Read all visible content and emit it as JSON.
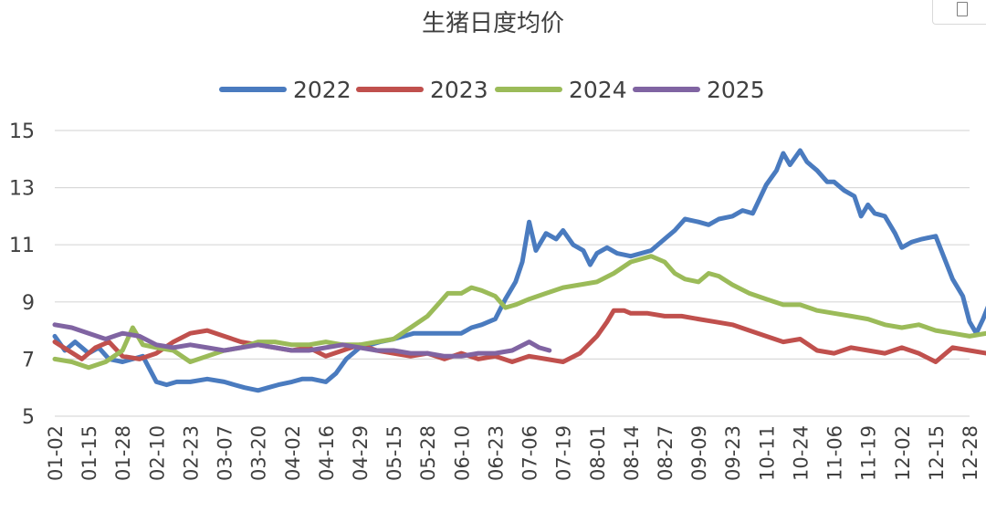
{
  "chart_data": {
    "type": "line",
    "title": "生猪日度均价",
    "xlabel": "",
    "ylabel": "",
    "ylim": [
      5,
      15
    ],
    "yticks": [
      5,
      7,
      9,
      11,
      13,
      15
    ],
    "grid": true,
    "legend_position": "top",
    "categories": [
      "01-02",
      "01-15",
      "01-28",
      "02-10",
      "02-23",
      "03-07",
      "03-20",
      "04-02",
      "04-16",
      "04-29",
      "05-15",
      "05-28",
      "06-10",
      "06-23",
      "07-06",
      "07-19",
      "08-01",
      "08-14",
      "08-27",
      "09-09",
      "09-23",
      "10-11",
      "10-24",
      "11-06",
      "11-19",
      "12-02",
      "12-15",
      "12-28"
    ],
    "series": [
      {
        "name": "2022",
        "color": "#4a7bbf",
        "points": [
          [
            0,
            7.8
          ],
          [
            0.3,
            7.3
          ],
          [
            0.6,
            7.6
          ],
          [
            1,
            7.2
          ],
          [
            1.3,
            7.4
          ],
          [
            1.6,
            7.0
          ],
          [
            2,
            6.9
          ],
          [
            2.3,
            7.0
          ],
          [
            2.6,
            7.1
          ],
          [
            3,
            6.2
          ],
          [
            3.3,
            6.1
          ],
          [
            3.6,
            6.2
          ],
          [
            4,
            6.2
          ],
          [
            4.5,
            6.3
          ],
          [
            5,
            6.2
          ],
          [
            5.3,
            6.1
          ],
          [
            5.6,
            6.0
          ],
          [
            6,
            5.9
          ],
          [
            6.3,
            6.0
          ],
          [
            6.6,
            6.1
          ],
          [
            7,
            6.2
          ],
          [
            7.3,
            6.3
          ],
          [
            7.6,
            6.3
          ],
          [
            8,
            6.2
          ],
          [
            8.3,
            6.5
          ],
          [
            8.6,
            7.0
          ],
          [
            9,
            7.4
          ],
          [
            9.3,
            7.5
          ],
          [
            9.6,
            7.6
          ],
          [
            10,
            7.7
          ],
          [
            10.3,
            7.8
          ],
          [
            10.6,
            7.9
          ],
          [
            11,
            7.9
          ],
          [
            11.5,
            7.9
          ],
          [
            12,
            7.9
          ],
          [
            12.3,
            8.1
          ],
          [
            12.6,
            8.2
          ],
          [
            13,
            8.4
          ],
          [
            13.3,
            9.1
          ],
          [
            13.6,
            9.7
          ],
          [
            13.8,
            10.4
          ],
          [
            14,
            11.8
          ],
          [
            14.2,
            10.8
          ],
          [
            14.5,
            11.4
          ],
          [
            14.8,
            11.2
          ],
          [
            15,
            11.5
          ],
          [
            15.3,
            11.0
          ],
          [
            15.6,
            10.8
          ],
          [
            15.8,
            10.3
          ],
          [
            16,
            10.7
          ],
          [
            16.3,
            10.9
          ],
          [
            16.6,
            10.7
          ],
          [
            17,
            10.6
          ],
          [
            17.3,
            10.7
          ],
          [
            17.6,
            10.8
          ],
          [
            18,
            11.2
          ],
          [
            18.3,
            11.5
          ],
          [
            18.6,
            11.9
          ],
          [
            19,
            11.8
          ],
          [
            19.3,
            11.7
          ],
          [
            19.6,
            11.9
          ],
          [
            20,
            12.0
          ],
          [
            20.3,
            12.2
          ],
          [
            20.6,
            12.1
          ],
          [
            21,
            13.1
          ],
          [
            21.3,
            13.6
          ],
          [
            21.5,
            14.2
          ],
          [
            21.7,
            13.8
          ],
          [
            22,
            14.3
          ],
          [
            22.2,
            13.9
          ],
          [
            22.5,
            13.6
          ],
          [
            22.8,
            13.2
          ],
          [
            23,
            13.2
          ],
          [
            23.3,
            12.9
          ],
          [
            23.6,
            12.7
          ],
          [
            23.8,
            12.0
          ],
          [
            24,
            12.4
          ],
          [
            24.2,
            12.1
          ],
          [
            24.5,
            12.0
          ],
          [
            24.8,
            11.4
          ],
          [
            25,
            10.9
          ],
          [
            25.3,
            11.1
          ],
          [
            25.6,
            11.2
          ],
          [
            26,
            11.3
          ],
          [
            26.3,
            10.4
          ],
          [
            26.5,
            9.8
          ],
          [
            26.8,
            9.2
          ],
          [
            27,
            8.3
          ],
          [
            27.2,
            7.9
          ],
          [
            27.4,
            8.4
          ],
          [
            27.6,
            9.0
          ],
          [
            27.8,
            8.8
          ],
          [
            28,
            8.3
          ]
        ]
      },
      {
        "name": "2023",
        "color": "#c0504d",
        "points": [
          [
            0,
            7.6
          ],
          [
            0.4,
            7.3
          ],
          [
            0.8,
            7.0
          ],
          [
            1.2,
            7.4
          ],
          [
            1.6,
            7.6
          ],
          [
            2,
            7.1
          ],
          [
            2.5,
            7.0
          ],
          [
            3,
            7.2
          ],
          [
            3.5,
            7.6
          ],
          [
            4,
            7.9
          ],
          [
            4.5,
            8.0
          ],
          [
            5,
            7.8
          ],
          [
            5.5,
            7.6
          ],
          [
            6,
            7.5
          ],
          [
            6.5,
            7.4
          ],
          [
            7,
            7.3
          ],
          [
            7.5,
            7.4
          ],
          [
            8,
            7.1
          ],
          [
            8.5,
            7.3
          ],
          [
            9,
            7.5
          ],
          [
            9.5,
            7.3
          ],
          [
            10,
            7.2
          ],
          [
            10.5,
            7.1
          ],
          [
            11,
            7.2
          ],
          [
            11.5,
            7.0
          ],
          [
            12,
            7.2
          ],
          [
            12.5,
            7.0
          ],
          [
            13,
            7.1
          ],
          [
            13.5,
            6.9
          ],
          [
            14,
            7.1
          ],
          [
            14.5,
            7.0
          ],
          [
            15,
            6.9
          ],
          [
            15.5,
            7.2
          ],
          [
            16,
            7.8
          ],
          [
            16.3,
            8.3
          ],
          [
            16.5,
            8.7
          ],
          [
            16.8,
            8.7
          ],
          [
            17,
            8.6
          ],
          [
            17.5,
            8.6
          ],
          [
            18,
            8.5
          ],
          [
            18.5,
            8.5
          ],
          [
            19,
            8.4
          ],
          [
            19.5,
            8.3
          ],
          [
            20,
            8.2
          ],
          [
            20.5,
            8.0
          ],
          [
            21,
            7.8
          ],
          [
            21.5,
            7.6
          ],
          [
            22,
            7.7
          ],
          [
            22.5,
            7.3
          ],
          [
            23,
            7.2
          ],
          [
            23.5,
            7.4
          ],
          [
            24,
            7.3
          ],
          [
            24.5,
            7.2
          ],
          [
            25,
            7.4
          ],
          [
            25.5,
            7.2
          ],
          [
            26,
            6.9
          ],
          [
            26.5,
            7.4
          ],
          [
            27,
            7.3
          ],
          [
            27.5,
            7.2
          ],
          [
            28,
            7.1
          ]
        ]
      },
      {
        "name": "2024",
        "color": "#9bbb59",
        "points": [
          [
            0,
            7.0
          ],
          [
            0.5,
            6.9
          ],
          [
            1,
            6.7
          ],
          [
            1.5,
            6.9
          ],
          [
            2,
            7.3
          ],
          [
            2.3,
            8.1
          ],
          [
            2.6,
            7.5
          ],
          [
            3,
            7.4
          ],
          [
            3.5,
            7.3
          ],
          [
            4,
            6.9
          ],
          [
            4.5,
            7.1
          ],
          [
            5,
            7.3
          ],
          [
            5.5,
            7.4
          ],
          [
            6,
            7.6
          ],
          [
            6.5,
            7.6
          ],
          [
            7,
            7.5
          ],
          [
            7.5,
            7.5
          ],
          [
            8,
            7.6
          ],
          [
            8.5,
            7.5
          ],
          [
            9,
            7.5
          ],
          [
            9.5,
            7.6
          ],
          [
            10,
            7.7
          ],
          [
            10.5,
            8.1
          ],
          [
            11,
            8.5
          ],
          [
            11.3,
            8.9
          ],
          [
            11.6,
            9.3
          ],
          [
            12,
            9.3
          ],
          [
            12.3,
            9.5
          ],
          [
            12.6,
            9.4
          ],
          [
            13,
            9.2
          ],
          [
            13.3,
            8.8
          ],
          [
            13.6,
            8.9
          ],
          [
            14,
            9.1
          ],
          [
            14.5,
            9.3
          ],
          [
            15,
            9.5
          ],
          [
            15.5,
            9.6
          ],
          [
            16,
            9.7
          ],
          [
            16.5,
            10.0
          ],
          [
            17,
            10.4
          ],
          [
            17.3,
            10.5
          ],
          [
            17.6,
            10.6
          ],
          [
            18,
            10.4
          ],
          [
            18.3,
            10.0
          ],
          [
            18.6,
            9.8
          ],
          [
            19,
            9.7
          ],
          [
            19.3,
            10.0
          ],
          [
            19.6,
            9.9
          ],
          [
            20,
            9.6
          ],
          [
            20.5,
            9.3
          ],
          [
            21,
            9.1
          ],
          [
            21.5,
            8.9
          ],
          [
            22,
            8.9
          ],
          [
            22.5,
            8.7
          ],
          [
            23,
            8.6
          ],
          [
            23.5,
            8.5
          ],
          [
            24,
            8.4
          ],
          [
            24.5,
            8.2
          ],
          [
            25,
            8.1
          ],
          [
            25.5,
            8.2
          ],
          [
            26,
            8.0
          ],
          [
            26.5,
            7.9
          ],
          [
            27,
            7.8
          ],
          [
            27.5,
            7.9
          ],
          [
            28,
            8.0
          ]
        ]
      },
      {
        "name": "2025",
        "color": "#8064a2",
        "points": [
          [
            0,
            8.2
          ],
          [
            0.5,
            8.1
          ],
          [
            1,
            7.9
          ],
          [
            1.5,
            7.7
          ],
          [
            2,
            7.9
          ],
          [
            2.5,
            7.8
          ],
          [
            3,
            7.5
          ],
          [
            3.5,
            7.4
          ],
          [
            4,
            7.5
          ],
          [
            4.5,
            7.4
          ],
          [
            5,
            7.3
          ],
          [
            5.5,
            7.4
          ],
          [
            6,
            7.5
          ],
          [
            6.5,
            7.4
          ],
          [
            7,
            7.3
          ],
          [
            7.5,
            7.3
          ],
          [
            8,
            7.4
          ],
          [
            8.5,
            7.5
          ],
          [
            9,
            7.4
          ],
          [
            9.5,
            7.3
          ],
          [
            10,
            7.3
          ],
          [
            10.5,
            7.2
          ],
          [
            11,
            7.2
          ],
          [
            11.5,
            7.1
          ],
          [
            12,
            7.1
          ],
          [
            12.5,
            7.2
          ],
          [
            13,
            7.2
          ],
          [
            13.5,
            7.3
          ],
          [
            14,
            7.6
          ],
          [
            14.3,
            7.4
          ],
          [
            14.6,
            7.3
          ]
        ]
      }
    ]
  }
}
